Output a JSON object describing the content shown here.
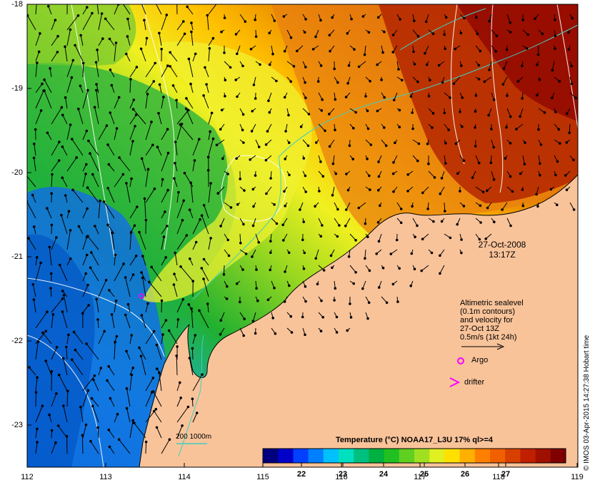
{
  "map": {
    "x_ticks": [
      "112",
      "113",
      "114",
      "115",
      "116",
      "117",
      "118",
      "119"
    ],
    "y_ticks": [
      "-18",
      "-19",
      "-20",
      "-21",
      "-22",
      "-23"
    ],
    "date": "27-Oct-2008",
    "time": "13:17Z",
    "legend_lines": [
      "Altimetric sealevel",
      "(0.1m contours)",
      "and velocity for",
      "27-Oct 13Z",
      "0.5m/s (1kt 24h)"
    ],
    "argo_label": "Argo",
    "drifter_label": "drifter",
    "isobath_label": "200  1000m",
    "credit": "© IMOS 03-Apr-2015 14:27:38 Hobart time",
    "colorbar": {
      "title": "Temperature (°C) NOAA17_L3U 17% ql>=4",
      "ticks": [
        "22",
        "23",
        "24",
        "25",
        "26",
        "27"
      ],
      "colors": [
        "#00007f",
        "#0000c8",
        "#0040ff",
        "#0080ff",
        "#00c0ff",
        "#00e0c0",
        "#00c080",
        "#00b040",
        "#20c020",
        "#60d020",
        "#a0e020",
        "#e0f020",
        "#ffe000",
        "#ffb000",
        "#ff8000",
        "#f06000",
        "#d84000",
        "#c02000",
        "#a01000",
        "#800000"
      ]
    },
    "colors": {
      "land": "#f9c39a",
      "argo": "#ff00ff",
      "isobath": "#40d0c0",
      "sealevel_contour": "#ffffff"
    }
  }
}
